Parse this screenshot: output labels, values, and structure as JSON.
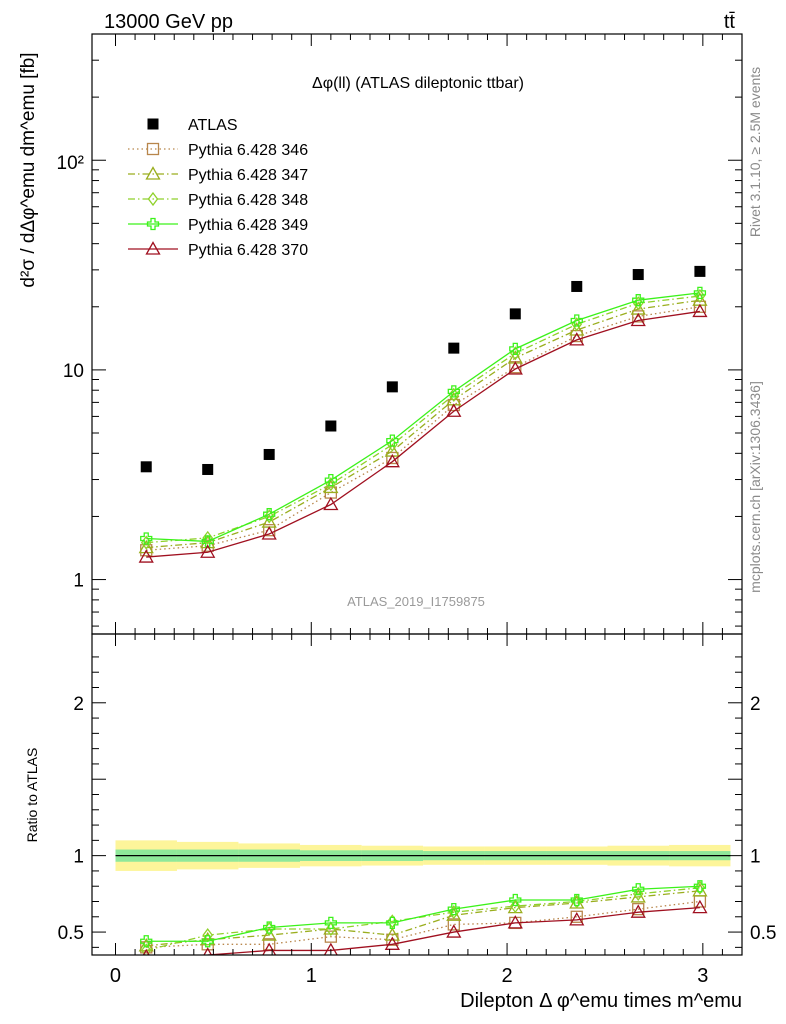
{
  "header": {
    "energy_label": "13000 GeV pp",
    "process_label": "tt̄"
  },
  "side_labels": {
    "rivet": "Rivet 3.1.10, ≥ 2.5M events",
    "mcplots": "mcplots.cern.ch [arXiv:1306.3436]"
  },
  "chart_data": [
    {
      "type": "scatter",
      "panel": "main",
      "title": "Δφ(ll) (ATLAS dileptonic ttbar)",
      "ylabel": "d²σ / dΔφ^emu dm^emu [fb]",
      "yscale": "log",
      "ylim": [
        0.55,
        400
      ],
      "xlim": [
        -0.12,
        3.2
      ],
      "y_tick_labels": [
        "1",
        "10",
        "10²"
      ],
      "watermark": "ATLAS_2019_I1759875",
      "legend_position": "top-left",
      "x": [
        0.157,
        0.471,
        0.785,
        1.1,
        1.414,
        1.728,
        2.042,
        2.356,
        2.67,
        2.985
      ],
      "series": [
        {
          "name": "ATLAS",
          "color": "#000000",
          "marker": "filled-square",
          "line": "none",
          "values": [
            3.45,
            3.35,
            3.95,
            5.4,
            8.3,
            12.7,
            18.5,
            25,
            28.5,
            29.5
          ]
        },
        {
          "name": "Pythia 6.428 346",
          "color": "#b8864b",
          "marker": "open-square",
          "line": "dotted",
          "values": [
            1.38,
            1.45,
            1.72,
            2.6,
            3.8,
            6.8,
            10.3,
            14.5,
            18.0,
            20.0
          ]
        },
        {
          "name": "Pythia 6.428 347",
          "color": "#9aae1e",
          "marker": "open-triangle",
          "line": "dash-dot",
          "values": [
            1.42,
            1.5,
            1.88,
            2.75,
            4.1,
            7.2,
            11.4,
            15.5,
            19.5,
            21.5
          ]
        },
        {
          "name": "Pythia 6.428 348",
          "color": "#8fd12a",
          "marker": "open-diamond",
          "line": "dash-dot",
          "values": [
            1.5,
            1.58,
            2.0,
            2.85,
            4.4,
            7.6,
            12.0,
            16.5,
            20.8,
            22.5
          ]
        },
        {
          "name": "Pythia 6.428 349",
          "color": "#3cf21a",
          "marker": "open-cross",
          "line": "solid",
          "values": [
            1.57,
            1.52,
            2.05,
            2.98,
            4.6,
            7.9,
            12.6,
            17.2,
            21.5,
            23.3
          ]
        },
        {
          "name": "Pythia 6.428 370",
          "color": "#a01020",
          "marker": "open-triangle",
          "line": "solid",
          "values": [
            1.28,
            1.35,
            1.65,
            2.28,
            3.65,
            6.35,
            10.1,
            13.9,
            17.2,
            19.0
          ]
        }
      ]
    },
    {
      "type": "line",
      "panel": "ratio",
      "ylabel": "Ratio to ATLAS",
      "xlabel": "Dilepton Δ φ^emu times m^emu",
      "ylim": [
        0.35,
        2.45
      ],
      "xlim": [
        -0.12,
        3.2
      ],
      "x_tick_labels": [
        "0",
        "1",
        "2",
        "3"
      ],
      "y_tick_labels": [
        "0.5",
        "1",
        "2"
      ],
      "x": [
        0.157,
        0.471,
        0.785,
        1.1,
        1.414,
        1.728,
        2.042,
        2.356,
        2.67,
        2.985
      ],
      "band_inner": [
        0.96,
        0.96,
        0.96,
        0.965,
        0.965,
        0.97,
        0.97,
        0.97,
        0.97,
        0.97
      ],
      "band_outer": [
        0.9,
        0.91,
        0.92,
        0.93,
        0.935,
        0.94,
        0.94,
        0.94,
        0.935,
        0.93
      ],
      "series": [
        {
          "name": "Pythia 6.428 346",
          "values": [
            0.4,
            0.42,
            0.42,
            0.47,
            0.45,
            0.55,
            0.56,
            0.6,
            0.65,
            0.7
          ]
        },
        {
          "name": "Pythia 6.428 347",
          "values": [
            0.41,
            0.45,
            0.48,
            0.52,
            0.48,
            0.61,
            0.66,
            0.69,
            0.73,
            0.77
          ]
        },
        {
          "name": "Pythia 6.428 348",
          "values": [
            0.38,
            0.48,
            0.52,
            0.52,
            0.57,
            0.63,
            0.67,
            0.7,
            0.75,
            0.79
          ]
        },
        {
          "name": "Pythia 6.428 349",
          "values": [
            0.44,
            0.44,
            0.53,
            0.56,
            0.56,
            0.65,
            0.71,
            0.71,
            0.78,
            0.8
          ]
        },
        {
          "name": "Pythia 6.428 370",
          "values": [
            0.34,
            0.35,
            0.38,
            0.38,
            0.42,
            0.5,
            0.56,
            0.58,
            0.63,
            0.66
          ]
        }
      ]
    }
  ]
}
